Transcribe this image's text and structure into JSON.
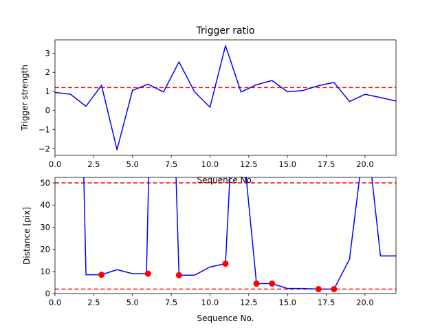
{
  "chart_data": [
    {
      "type": "line",
      "title": "Trigger ratio",
      "xlabel": "Sequence No.",
      "ylabel": "Trigger strength",
      "xlim": [
        0,
        22
      ],
      "ylim": [
        -2.35,
        3.7
      ],
      "xticks": [
        0,
        2.5,
        5,
        7.5,
        10,
        12.5,
        15,
        17.5,
        20
      ],
      "xtick_labels": [
        "0.0",
        "2.5",
        "5.0",
        "7.5",
        "10.0",
        "12.5",
        "15.0",
        "17.5",
        "20.0"
      ],
      "yticks": [
        -2,
        -1,
        0,
        1,
        2,
        3
      ],
      "ytick_labels": [
        "−2",
        "−1",
        "0",
        "1",
        "2",
        "3"
      ],
      "series": [
        {
          "color": "#0000ff",
          "x": [
            0,
            1,
            2,
            3,
            4,
            5,
            6,
            7,
            8,
            9,
            10,
            11,
            12,
            13,
            14,
            15,
            16,
            17,
            18,
            19,
            20,
            21,
            22
          ],
          "y": [
            0.95,
            0.85,
            0.22,
            1.32,
            -2.05,
            1.05,
            1.38,
            0.97,
            2.55,
            0.98,
            0.17,
            3.4,
            0.97,
            1.35,
            1.57,
            0.98,
            1.05,
            1.3,
            1.47,
            0.47,
            0.85,
            0.68,
            0.5
          ]
        }
      ],
      "hlines": [
        {
          "y": 1.2,
          "color": "#ff0000",
          "style": "dashed"
        }
      ],
      "grid": false
    },
    {
      "type": "line",
      "title": "",
      "xlabel": "Sequence No.",
      "ylabel": "Distance [pix]",
      "xlim": [
        0,
        22
      ],
      "ylim": [
        0,
        52.5
      ],
      "xticks": [
        0,
        2.5,
        5,
        7.5,
        10,
        12.5,
        15,
        17.5,
        20
      ],
      "xtick_labels": [
        "0.0",
        "2.5",
        "5.0",
        "7.5",
        "10.0",
        "12.5",
        "15.0",
        "17.5",
        "20.0"
      ],
      "yticks": [
        0,
        10,
        20,
        30,
        40,
        50
      ],
      "ytick_labels": [
        "0",
        "10",
        "20",
        "30",
        "40",
        "50"
      ],
      "series": [
        {
          "color": "#0000ff",
          "x": [
            1.85,
            2,
            3,
            4,
            5,
            5.9,
            6.05,
            7.8,
            8,
            9,
            10,
            11,
            11.3,
            12.3,
            13,
            14,
            15,
            16,
            17,
            18,
            19,
            19.7,
            20.4,
            21,
            22
          ],
          "y": [
            55,
            8.5,
            8.5,
            10.8,
            9,
            9,
            55,
            55,
            8.3,
            8.3,
            12,
            13.5,
            55,
            55,
            4.5,
            4.5,
            2.3,
            2.3,
            2,
            2,
            15.5,
            55,
            55,
            17,
            17
          ]
        }
      ],
      "markers": {
        "color": "#ff0000",
        "x": [
          3,
          6,
          8,
          11,
          13,
          14,
          17,
          18
        ],
        "y": [
          8.5,
          9,
          8.3,
          13.5,
          4.5,
          4.5,
          2,
          2
        ]
      },
      "hlines": [
        {
          "y": 50,
          "color": "#ff0000",
          "style": "dashed"
        },
        {
          "y": 2,
          "color": "#ff0000",
          "style": "dashed"
        }
      ],
      "grid": false
    }
  ]
}
